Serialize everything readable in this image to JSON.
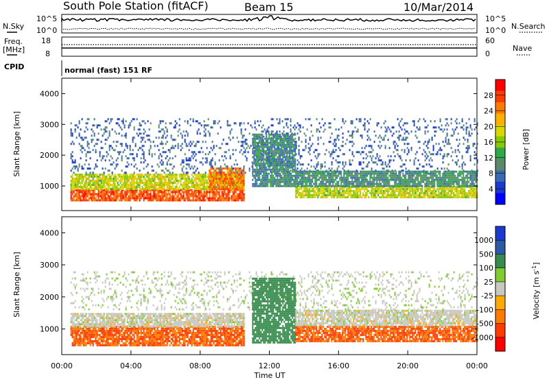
{
  "header": {
    "title": "South Pole Station (fitACF)",
    "beam": "Beam 15",
    "date": "10/Mar/2014"
  },
  "noise_panel": {
    "left_label": "N.Sky",
    "left_ticks": [
      "10^5",
      "10^0"
    ],
    "right_label": "N.Search",
    "right_ticks": [
      "10^5",
      "10^0"
    ]
  },
  "freq_panel": {
    "left_label_line1": "Freq.",
    "left_label_line2": "[MHz]",
    "left_ticks": [
      "18",
      "8"
    ],
    "right_label": "Nave",
    "right_ticks": [
      "60",
      "0"
    ]
  },
  "cpid": {
    "label": "CPID",
    "text": "normal (fast) 151 RF"
  },
  "xaxis": {
    "label": "Time UT",
    "tick_labels": [
      "00:00",
      "04:00",
      "08:00",
      "12:00",
      "16:00",
      "20:00",
      "00:00"
    ]
  },
  "power_colorbar": {
    "label": "Power [dB]",
    "tick_labels": [
      "28",
      "24",
      "20",
      "16",
      "12",
      "8",
      "4"
    ],
    "colors": [
      "#ff0000",
      "#ff3b00",
      "#ff7a00",
      "#ffb000",
      "#d8d800",
      "#8ac800",
      "#2fa84a",
      "#5a8a6a",
      "#3a6ab0",
      "#1a3acd",
      "#0000ff"
    ]
  },
  "velocity_colorbar": {
    "label_main": "Velocity [m s",
    "label_sup": "-1",
    "label_end": "]",
    "tick_labels": [
      "1000",
      "500",
      "100",
      "25",
      "-25",
      "-100",
      "-500",
      "-1000"
    ],
    "colors": [
      "#1a3acd",
      "#2a5aa8",
      "#3a8a50",
      "#80cc30",
      "#c8c8c0",
      "#ffaa00",
      "#ff7a00",
      "#ff3b00",
      "#ff0000"
    ]
  },
  "chart_data": [
    {
      "type": "heatmap",
      "title": "Power",
      "xlabel": "Time UT",
      "ylabel": "Slant Range [km]",
      "xlim": [
        0,
        24
      ],
      "ylim": [
        200,
        4500
      ],
      "yticks": [
        "1000",
        "2000",
        "3000",
        "4000"
      ],
      "colorbar": {
        "label": "Power [dB]",
        "range": [
          0,
          32
        ],
        "ticks": [
          4,
          8,
          12,
          16,
          20,
          24,
          28
        ]
      },
      "regions": [
        {
          "t0": 0.5,
          "t1": 10.5,
          "r0": 500,
          "r1": 900,
          "value": 28
        },
        {
          "t0": 0.5,
          "t1": 10.5,
          "r0": 900,
          "r1": 1400,
          "value": 18
        },
        {
          "t0": 8.5,
          "t1": 10.5,
          "r0": 900,
          "r1": 1600,
          "value": 26
        },
        {
          "t0": 0.5,
          "t1": 24,
          "r0": 1400,
          "r1": 3200,
          "value": 6
        },
        {
          "t0": 11.0,
          "t1": 13.5,
          "r0": 1000,
          "r1": 2700,
          "value": 9
        },
        {
          "t0": 13.5,
          "t1": 24,
          "r0": 600,
          "r1": 1000,
          "value": 18
        },
        {
          "t0": 13.5,
          "t1": 24,
          "r0": 1000,
          "r1": 1500,
          "value": 10
        }
      ]
    },
    {
      "type": "heatmap",
      "title": "Velocity",
      "xlabel": "Time UT",
      "ylabel": "Slant Range [km]",
      "xlim": [
        0,
        24
      ],
      "ylim": [
        200,
        4500
      ],
      "yticks": [
        "1000",
        "2000",
        "3000",
        "4000"
      ],
      "colorbar": {
        "label": "Velocity [m s-1]",
        "ticks": [
          1000,
          500,
          100,
          25,
          -25,
          -100,
          -500,
          -1000
        ]
      },
      "regions": [
        {
          "t0": 0.5,
          "t1": 10.5,
          "r0": 500,
          "r1": 1100,
          "value": -300
        },
        {
          "t0": 0.5,
          "t1": 10.5,
          "r0": 1100,
          "r1": 1500,
          "value": 0
        },
        {
          "t0": 0.5,
          "t1": 24,
          "r0": 1600,
          "r1": 2800,
          "value": 5
        },
        {
          "t0": 11.0,
          "t1": 13.5,
          "r0": 600,
          "r1": 2600,
          "value": 150
        },
        {
          "t0": 13.5,
          "t1": 24,
          "r0": 600,
          "r1": 1100,
          "value": -300
        },
        {
          "t0": 13.5,
          "t1": 24,
          "r0": 1100,
          "r1": 1600,
          "value": 0
        }
      ]
    }
  ]
}
